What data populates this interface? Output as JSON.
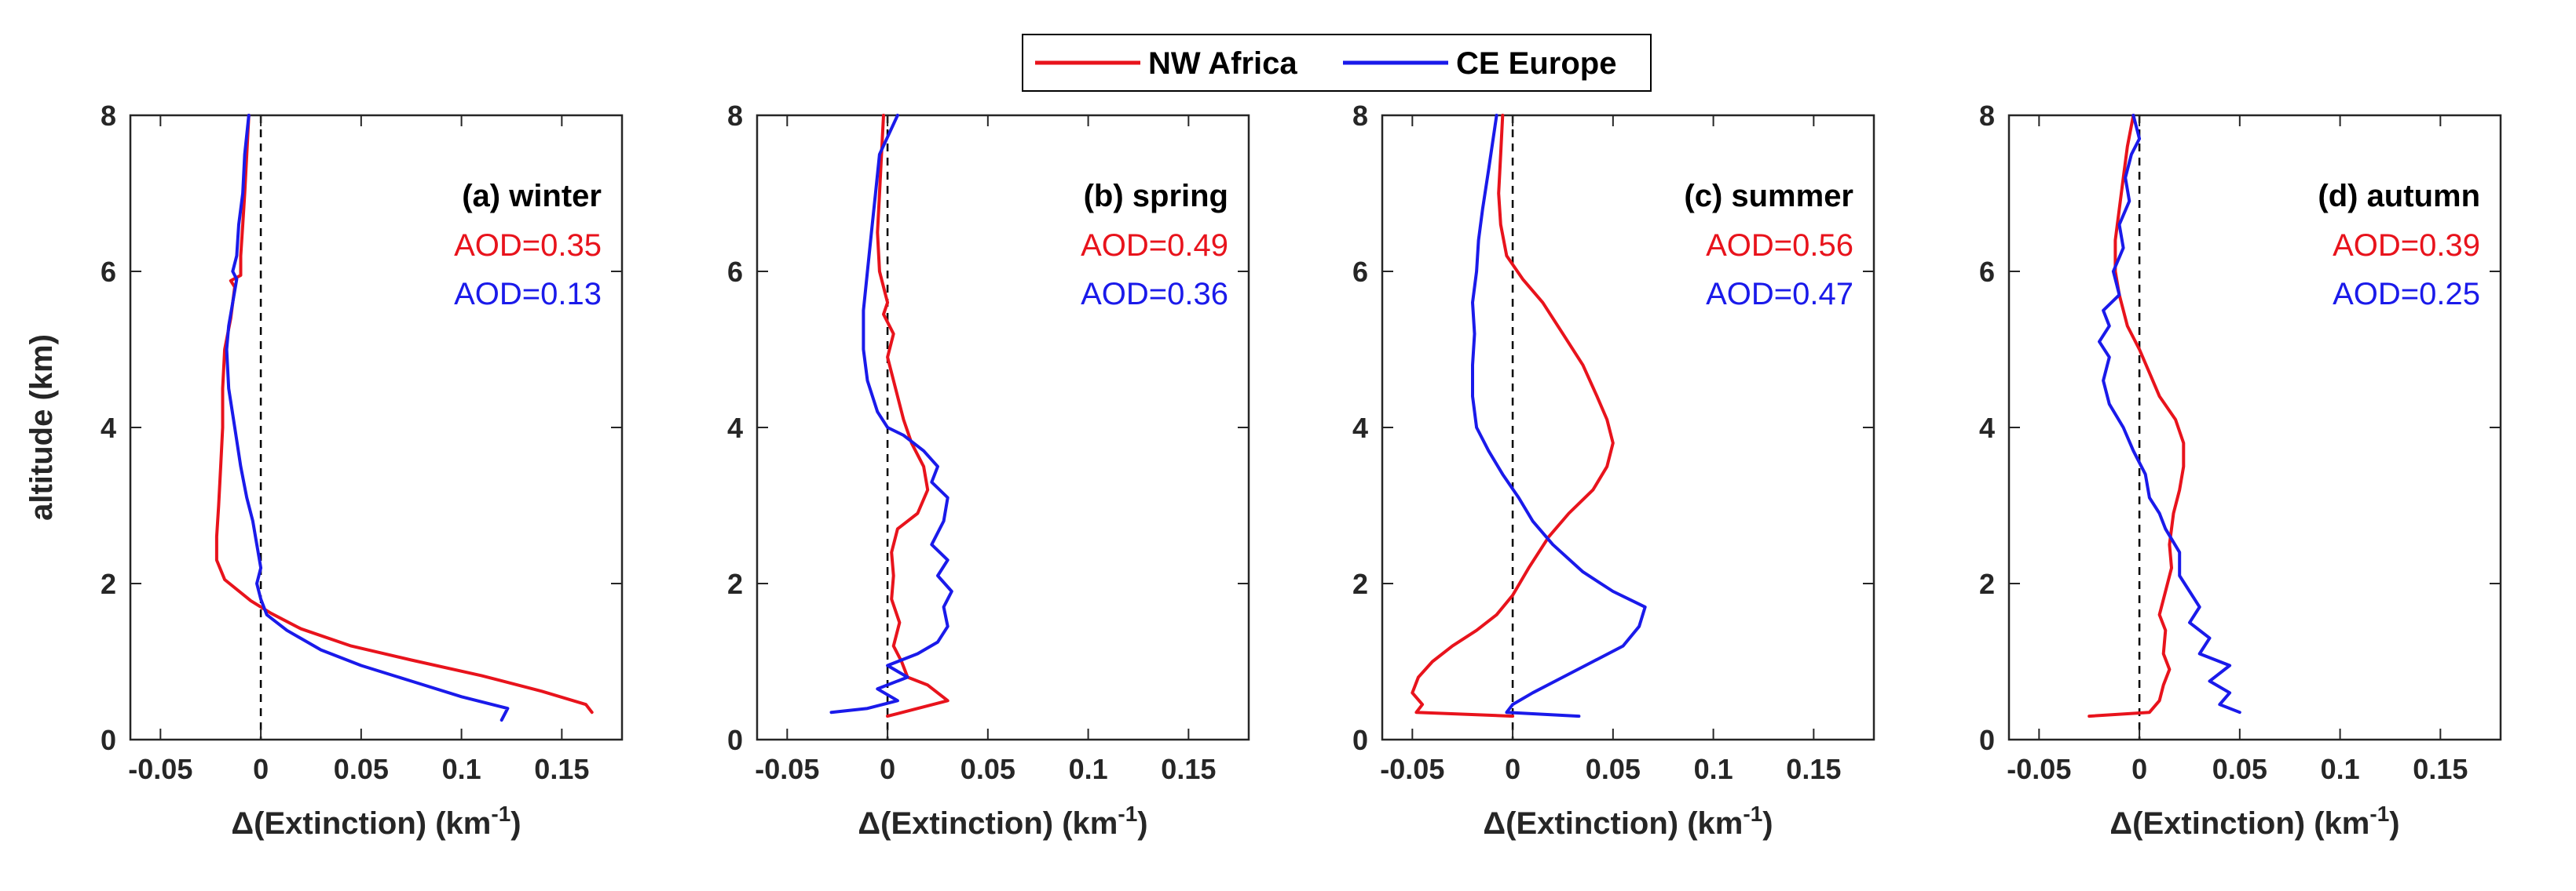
{
  "legend": {
    "entries": [
      {
        "name": "NW Africa",
        "color": "#e8131c"
      },
      {
        "name": "CE Europe",
        "color": "#1a1aea"
      }
    ]
  },
  "colors": {
    "africa": "#e8131c",
    "europe": "#1a1aea",
    "axis": "#262626"
  },
  "chart_data": [
    {
      "type": "line",
      "title": "(a) winter",
      "xlabel_main": "Δ(Extinction) (km",
      "xlabel_sup": "-1",
      "xlabel_close": ")",
      "ylabel": "altitude (km)",
      "xlim": [
        -0.065,
        0.18
      ],
      "ylim": [
        0,
        8
      ],
      "xticks": [
        -0.05,
        0,
        0.05,
        0.1,
        0.15
      ],
      "xtick_labels": [
        "-0.05",
        "0",
        "0.05",
        "0.1",
        "0.15"
      ],
      "yticks": [
        0,
        2,
        4,
        6,
        8
      ],
      "ytick_labels": [
        "0",
        "2",
        "4",
        "6",
        "8"
      ],
      "annotations": [
        {
          "text": "AOD=0.35",
          "series": "NW Africa"
        },
        {
          "text": "AOD=0.13",
          "series": "CE Europe"
        }
      ],
      "series": [
        {
          "name": "NW Africa",
          "color": "#e8131c",
          "points": [
            [
              0.165,
              0.35
            ],
            [
              0.162,
              0.45
            ],
            [
              0.14,
              0.62
            ],
            [
              0.11,
              0.82
            ],
            [
              0.075,
              1.02
            ],
            [
              0.045,
              1.2
            ],
            [
              0.02,
              1.42
            ],
            [
              0.005,
              1.62
            ],
            [
              -0.005,
              1.78
            ],
            [
              -0.018,
              2.05
            ],
            [
              -0.022,
              2.3
            ],
            [
              -0.022,
              2.6
            ],
            [
              -0.021,
              3.0
            ],
            [
              -0.02,
              3.5
            ],
            [
              -0.019,
              4.0
            ],
            [
              -0.019,
              4.5
            ],
            [
              -0.018,
              5.0
            ],
            [
              -0.015,
              5.4
            ],
            [
              -0.013,
              5.8
            ],
            [
              -0.015,
              5.88
            ],
            [
              -0.01,
              5.95
            ],
            [
              -0.01,
              6.2
            ],
            [
              -0.009,
              6.6
            ],
            [
              -0.008,
              7.0
            ],
            [
              -0.007,
              7.5
            ],
            [
              -0.006,
              8.0
            ]
          ]
        },
        {
          "name": "CE Europe",
          "color": "#1a1aea",
          "points": [
            [
              0.12,
              0.25
            ],
            [
              0.123,
              0.4
            ],
            [
              0.1,
              0.55
            ],
            [
              0.075,
              0.75
            ],
            [
              0.05,
              0.95
            ],
            [
              0.03,
              1.15
            ],
            [
              0.013,
              1.4
            ],
            [
              0.003,
              1.6
            ],
            [
              0.0,
              1.8
            ],
            [
              -0.002,
              2.0
            ],
            [
              0.0,
              2.2
            ],
            [
              -0.002,
              2.5
            ],
            [
              -0.004,
              2.8
            ],
            [
              -0.007,
              3.1
            ],
            [
              -0.01,
              3.5
            ],
            [
              -0.013,
              4.0
            ],
            [
              -0.016,
              4.5
            ],
            [
              -0.017,
              5.0
            ],
            [
              -0.016,
              5.3
            ],
            [
              -0.014,
              5.6
            ],
            [
              -0.012,
              5.9
            ],
            [
              -0.014,
              6.0
            ],
            [
              -0.012,
              6.2
            ],
            [
              -0.011,
              6.6
            ],
            [
              -0.009,
              7.0
            ],
            [
              -0.008,
              7.5
            ],
            [
              -0.006,
              8.0
            ]
          ]
        }
      ]
    },
    {
      "type": "line",
      "title": "(b) spring",
      "xlabel_main": "Δ(Extinction) (km",
      "xlabel_sup": "-1",
      "xlabel_close": ")",
      "ylabel": "",
      "xlim": [
        -0.065,
        0.18
      ],
      "ylim": [
        0,
        8
      ],
      "xticks": [
        -0.05,
        0,
        0.05,
        0.1,
        0.15
      ],
      "xtick_labels": [
        "-0.05",
        "0",
        "0.05",
        "0.1",
        "0.15"
      ],
      "yticks": [
        0,
        2,
        4,
        6,
        8
      ],
      "ytick_labels": [
        "0",
        "2",
        "4",
        "6",
        "8"
      ],
      "annotations": [
        {
          "text": "AOD=0.49",
          "series": "NW Africa"
        },
        {
          "text": "AOD=0.36",
          "series": "CE Europe"
        }
      ],
      "series": [
        {
          "name": "NW Africa",
          "color": "#e8131c",
          "points": [
            [
              0.0,
              0.3
            ],
            [
              0.03,
              0.5
            ],
            [
              0.02,
              0.7
            ],
            [
              0.01,
              0.8
            ],
            [
              0.007,
              1.0
            ],
            [
              0.003,
              1.2
            ],
            [
              0.006,
              1.5
            ],
            [
              0.002,
              1.8
            ],
            [
              0.003,
              2.1
            ],
            [
              0.002,
              2.4
            ],
            [
              0.005,
              2.7
            ],
            [
              0.015,
              2.9
            ],
            [
              0.02,
              3.2
            ],
            [
              0.018,
              3.5
            ],
            [
              0.012,
              3.8
            ],
            [
              0.008,
              4.1
            ],
            [
              0.004,
              4.5
            ],
            [
              0.0,
              4.9
            ],
            [
              0.003,
              5.2
            ],
            [
              -0.002,
              5.45
            ],
            [
              0.0,
              5.6
            ],
            [
              -0.004,
              6.0
            ],
            [
              -0.005,
              6.5
            ],
            [
              -0.004,
              7.0
            ],
            [
              -0.003,
              7.5
            ],
            [
              -0.002,
              8.0
            ]
          ]
        },
        {
          "name": "CE Europe",
          "color": "#1a1aea",
          "points": [
            [
              -0.028,
              0.35
            ],
            [
              -0.01,
              0.4
            ],
            [
              0.005,
              0.5
            ],
            [
              -0.005,
              0.65
            ],
            [
              0.01,
              0.8
            ],
            [
              0.0,
              0.95
            ],
            [
              0.015,
              1.1
            ],
            [
              0.025,
              1.25
            ],
            [
              0.03,
              1.45
            ],
            [
              0.028,
              1.7
            ],
            [
              0.032,
              1.9
            ],
            [
              0.025,
              2.1
            ],
            [
              0.03,
              2.3
            ],
            [
              0.022,
              2.5
            ],
            [
              0.028,
              2.8
            ],
            [
              0.03,
              3.1
            ],
            [
              0.022,
              3.3
            ],
            [
              0.025,
              3.5
            ],
            [
              0.018,
              3.7
            ],
            [
              0.008,
              3.9
            ],
            [
              0.0,
              4.0
            ],
            [
              -0.005,
              4.2
            ],
            [
              -0.01,
              4.6
            ],
            [
              -0.012,
              5.0
            ],
            [
              -0.012,
              5.5
            ],
            [
              -0.01,
              6.0
            ],
            [
              -0.008,
              6.5
            ],
            [
              -0.006,
              7.0
            ],
            [
              -0.004,
              7.5
            ],
            [
              0.005,
              8.0
            ]
          ]
        }
      ]
    },
    {
      "type": "line",
      "title": "(c) summer",
      "xlabel_main": "Δ(Extinction) (km",
      "xlabel_sup": "-1",
      "xlabel_close": ")",
      "ylabel": "",
      "xlim": [
        -0.065,
        0.18
      ],
      "ylim": [
        0,
        8
      ],
      "xticks": [
        -0.05,
        0,
        0.05,
        0.1,
        0.15
      ],
      "xtick_labels": [
        "-0.05",
        "0",
        "0.05",
        "0.1",
        "0.15"
      ],
      "yticks": [
        0,
        2,
        4,
        6,
        8
      ],
      "ytick_labels": [
        "0",
        "2",
        "4",
        "6",
        "8"
      ],
      "annotations": [
        {
          "text": "AOD=0.56",
          "series": "NW Africa"
        },
        {
          "text": "AOD=0.47",
          "series": "CE Europe"
        }
      ],
      "series": [
        {
          "name": "NW Africa",
          "color": "#e8131c",
          "points": [
            [
              0.0,
              0.3
            ],
            [
              -0.048,
              0.35
            ],
            [
              -0.045,
              0.45
            ],
            [
              -0.05,
              0.6
            ],
            [
              -0.047,
              0.8
            ],
            [
              -0.04,
              1.0
            ],
            [
              -0.03,
              1.2
            ],
            [
              -0.018,
              1.4
            ],
            [
              -0.008,
              1.6
            ],
            [
              0.0,
              1.85
            ],
            [
              0.008,
              2.2
            ],
            [
              0.018,
              2.6
            ],
            [
              0.028,
              2.9
            ],
            [
              0.04,
              3.2
            ],
            [
              0.047,
              3.5
            ],
            [
              0.05,
              3.8
            ],
            [
              0.047,
              4.1
            ],
            [
              0.042,
              4.4
            ],
            [
              0.035,
              4.8
            ],
            [
              0.025,
              5.2
            ],
            [
              0.015,
              5.6
            ],
            [
              0.005,
              5.9
            ],
            [
              -0.003,
              6.2
            ],
            [
              -0.006,
              6.6
            ],
            [
              -0.007,
              7.0
            ],
            [
              -0.006,
              7.5
            ],
            [
              -0.005,
              8.0
            ]
          ]
        },
        {
          "name": "CE Europe",
          "color": "#1a1aea",
          "points": [
            [
              0.033,
              0.3
            ],
            [
              -0.003,
              0.35
            ],
            [
              0.0,
              0.45
            ],
            [
              0.01,
              0.6
            ],
            [
              0.025,
              0.8
            ],
            [
              0.04,
              1.0
            ],
            [
              0.055,
              1.2
            ],
            [
              0.063,
              1.45
            ],
            [
              0.066,
              1.7
            ],
            [
              0.05,
              1.9
            ],
            [
              0.035,
              2.15
            ],
            [
              0.02,
              2.5
            ],
            [
              0.01,
              2.8
            ],
            [
              0.003,
              3.1
            ],
            [
              -0.005,
              3.4
            ],
            [
              -0.012,
              3.7
            ],
            [
              -0.018,
              4.0
            ],
            [
              -0.02,
              4.4
            ],
            [
              -0.02,
              4.8
            ],
            [
              -0.019,
              5.2
            ],
            [
              -0.02,
              5.6
            ],
            [
              -0.018,
              6.0
            ],
            [
              -0.017,
              6.4
            ],
            [
              -0.015,
              6.8
            ],
            [
              -0.012,
              7.3
            ],
            [
              -0.008,
              8.0
            ]
          ]
        }
      ]
    },
    {
      "type": "line",
      "title": "(d) autumn",
      "xlabel_main": "Δ(Extinction) (km",
      "xlabel_sup": "-1",
      "xlabel_close": ")",
      "ylabel": "",
      "xlim": [
        -0.065,
        0.18
      ],
      "ylim": [
        0,
        8
      ],
      "xticks": [
        -0.05,
        0,
        0.05,
        0.1,
        0.15
      ],
      "xtick_labels": [
        "-0.05",
        "0",
        "0.05",
        "0.1",
        "0.15"
      ],
      "yticks": [
        0,
        2,
        4,
        6,
        8
      ],
      "ytick_labels": [
        "0",
        "2",
        "4",
        "6",
        "8"
      ],
      "annotations": [
        {
          "text": "AOD=0.39",
          "series": "NW Africa"
        },
        {
          "text": "AOD=0.25",
          "series": "CE Europe"
        }
      ],
      "series": [
        {
          "name": "NW Africa",
          "color": "#e8131c",
          "points": [
            [
              -0.025,
              0.3
            ],
            [
              0.005,
              0.35
            ],
            [
              0.01,
              0.5
            ],
            [
              0.012,
              0.7
            ],
            [
              0.015,
              0.9
            ],
            [
              0.012,
              1.1
            ],
            [
              0.013,
              1.4
            ],
            [
              0.01,
              1.6
            ],
            [
              0.013,
              1.9
            ],
            [
              0.016,
              2.2
            ],
            [
              0.015,
              2.5
            ],
            [
              0.017,
              2.9
            ],
            [
              0.02,
              3.2
            ],
            [
              0.022,
              3.5
            ],
            [
              0.022,
              3.8
            ],
            [
              0.018,
              4.1
            ],
            [
              0.01,
              4.4
            ],
            [
              0.005,
              4.7
            ],
            [
              0.0,
              5.0
            ],
            [
              -0.006,
              5.3
            ],
            [
              -0.01,
              5.7
            ],
            [
              -0.012,
              6.0
            ],
            [
              -0.012,
              6.4
            ],
            [
              -0.01,
              6.8
            ],
            [
              -0.008,
              7.2
            ],
            [
              -0.006,
              7.6
            ],
            [
              -0.003,
              8.0
            ]
          ]
        },
        {
          "name": "CE Europe",
          "color": "#1a1aea",
          "points": [
            [
              0.05,
              0.35
            ],
            [
              0.04,
              0.45
            ],
            [
              0.045,
              0.6
            ],
            [
              0.035,
              0.75
            ],
            [
              0.045,
              0.95
            ],
            [
              0.03,
              1.1
            ],
            [
              0.035,
              1.3
            ],
            [
              0.025,
              1.5
            ],
            [
              0.03,
              1.7
            ],
            [
              0.025,
              1.9
            ],
            [
              0.02,
              2.1
            ],
            [
              0.02,
              2.4
            ],
            [
              0.013,
              2.7
            ],
            [
              0.01,
              2.9
            ],
            [
              0.005,
              3.1
            ],
            [
              0.003,
              3.4
            ],
            [
              -0.003,
              3.7
            ],
            [
              -0.008,
              4.0
            ],
            [
              -0.015,
              4.3
            ],
            [
              -0.018,
              4.6
            ],
            [
              -0.015,
              4.9
            ],
            [
              -0.02,
              5.1
            ],
            [
              -0.015,
              5.3
            ],
            [
              -0.018,
              5.5
            ],
            [
              -0.01,
              5.7
            ],
            [
              -0.013,
              6.0
            ],
            [
              -0.008,
              6.3
            ],
            [
              -0.01,
              6.6
            ],
            [
              -0.005,
              6.9
            ],
            [
              -0.007,
              7.2
            ],
            [
              -0.004,
              7.5
            ],
            [
              0.0,
              7.7
            ],
            [
              -0.003,
              8.0
            ]
          ]
        }
      ]
    }
  ]
}
